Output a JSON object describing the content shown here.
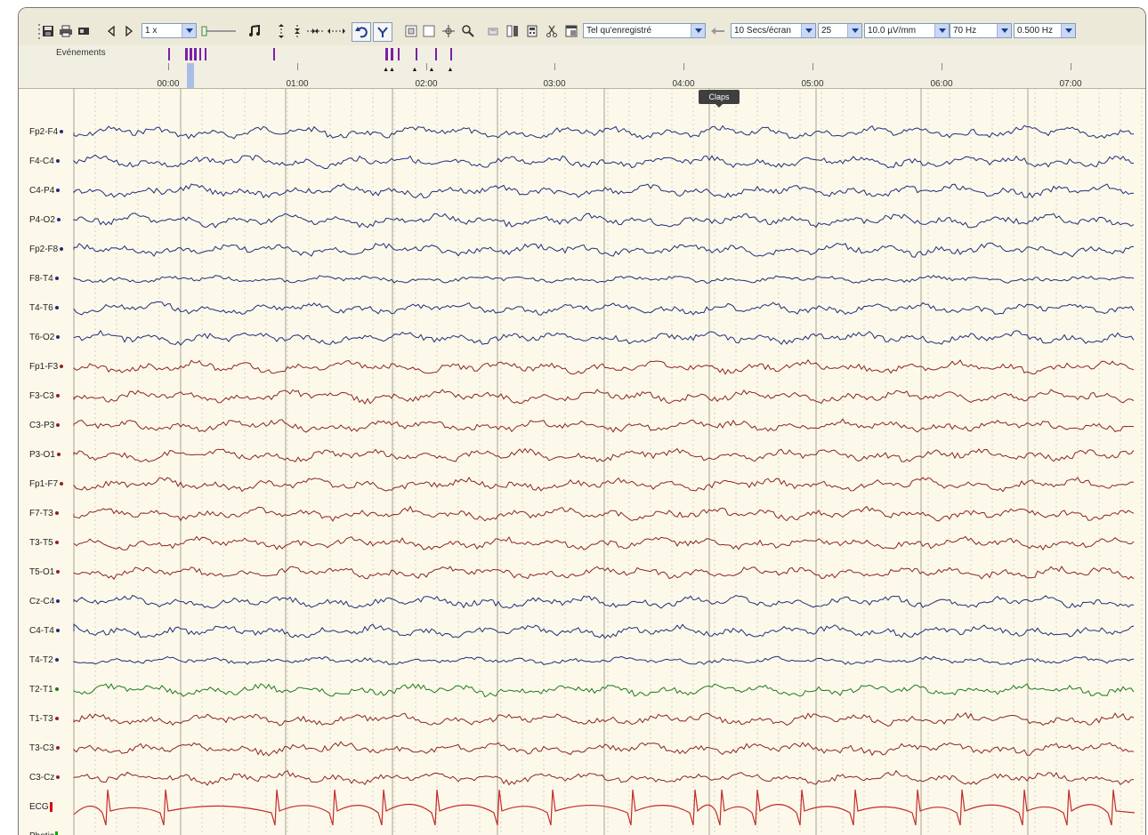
{
  "toolbar": {
    "speed_value": "1 x",
    "display_mode": "Tel qu'enregistré",
    "time_scale": "10 Secs/écran",
    "channel_count": "25",
    "sensitivity": "10.0 µV/mm",
    "high_filter": "70 Hz",
    "low_filter": "0.500 Hz"
  },
  "events": {
    "label": "Evénements",
    "marker_color": "#7a1fa8"
  },
  "timeline": {
    "ticks": [
      "00:00",
      "01:00",
      "02:00",
      "03:00",
      "04:00",
      "05:00",
      "06:00",
      "07:00"
    ]
  },
  "tooltip": {
    "text": "Claps"
  },
  "colors": {
    "background": "#fdf9ea",
    "blue_trace": "#1f2d7c",
    "red_trace": "#8b2424",
    "green_trace": "#1d7a1d",
    "ecg_trace": "#c22a2a"
  },
  "channels": [
    {
      "name": "Fp2-F4",
      "color": "#1f2d7c"
    },
    {
      "name": "F4-C4",
      "color": "#1f2d7c"
    },
    {
      "name": "C4-P4",
      "color": "#1f2d7c"
    },
    {
      "name": "P4-O2",
      "color": "#1f2d7c"
    },
    {
      "name": "Fp2-F8",
      "color": "#1f2d7c"
    },
    {
      "name": "F8-T4",
      "color": "#1f2d7c"
    },
    {
      "name": "T4-T6",
      "color": "#1f2d7c"
    },
    {
      "name": "T6-O2",
      "color": "#1f2d7c"
    },
    {
      "name": "Fp1-F3",
      "color": "#8b2424"
    },
    {
      "name": "F3-C3",
      "color": "#8b2424"
    },
    {
      "name": "C3-P3",
      "color": "#8b2424"
    },
    {
      "name": "P3-O1",
      "color": "#8b2424"
    },
    {
      "name": "Fp1-F7",
      "color": "#8b2424"
    },
    {
      "name": "F7-T3",
      "color": "#8b2424"
    },
    {
      "name": "T3-T5",
      "color": "#8b2424"
    },
    {
      "name": "T5-O1",
      "color": "#8b2424"
    },
    {
      "name": "Cz-C4",
      "color": "#1f2d7c"
    },
    {
      "name": "C4-T4",
      "color": "#1f2d7c"
    },
    {
      "name": "T4-T2",
      "color": "#1f2d7c"
    },
    {
      "name": "T2-T1",
      "color": "#1d7a1d"
    },
    {
      "name": "T1-T3",
      "color": "#8b2424"
    },
    {
      "name": "T3-C3",
      "color": "#8b2424"
    },
    {
      "name": "C3-Cz",
      "color": "#8b2424"
    },
    {
      "name": "ECG",
      "color": "#c22a2a"
    },
    {
      "name": "Photic",
      "color": "#1d7a1d"
    }
  ]
}
